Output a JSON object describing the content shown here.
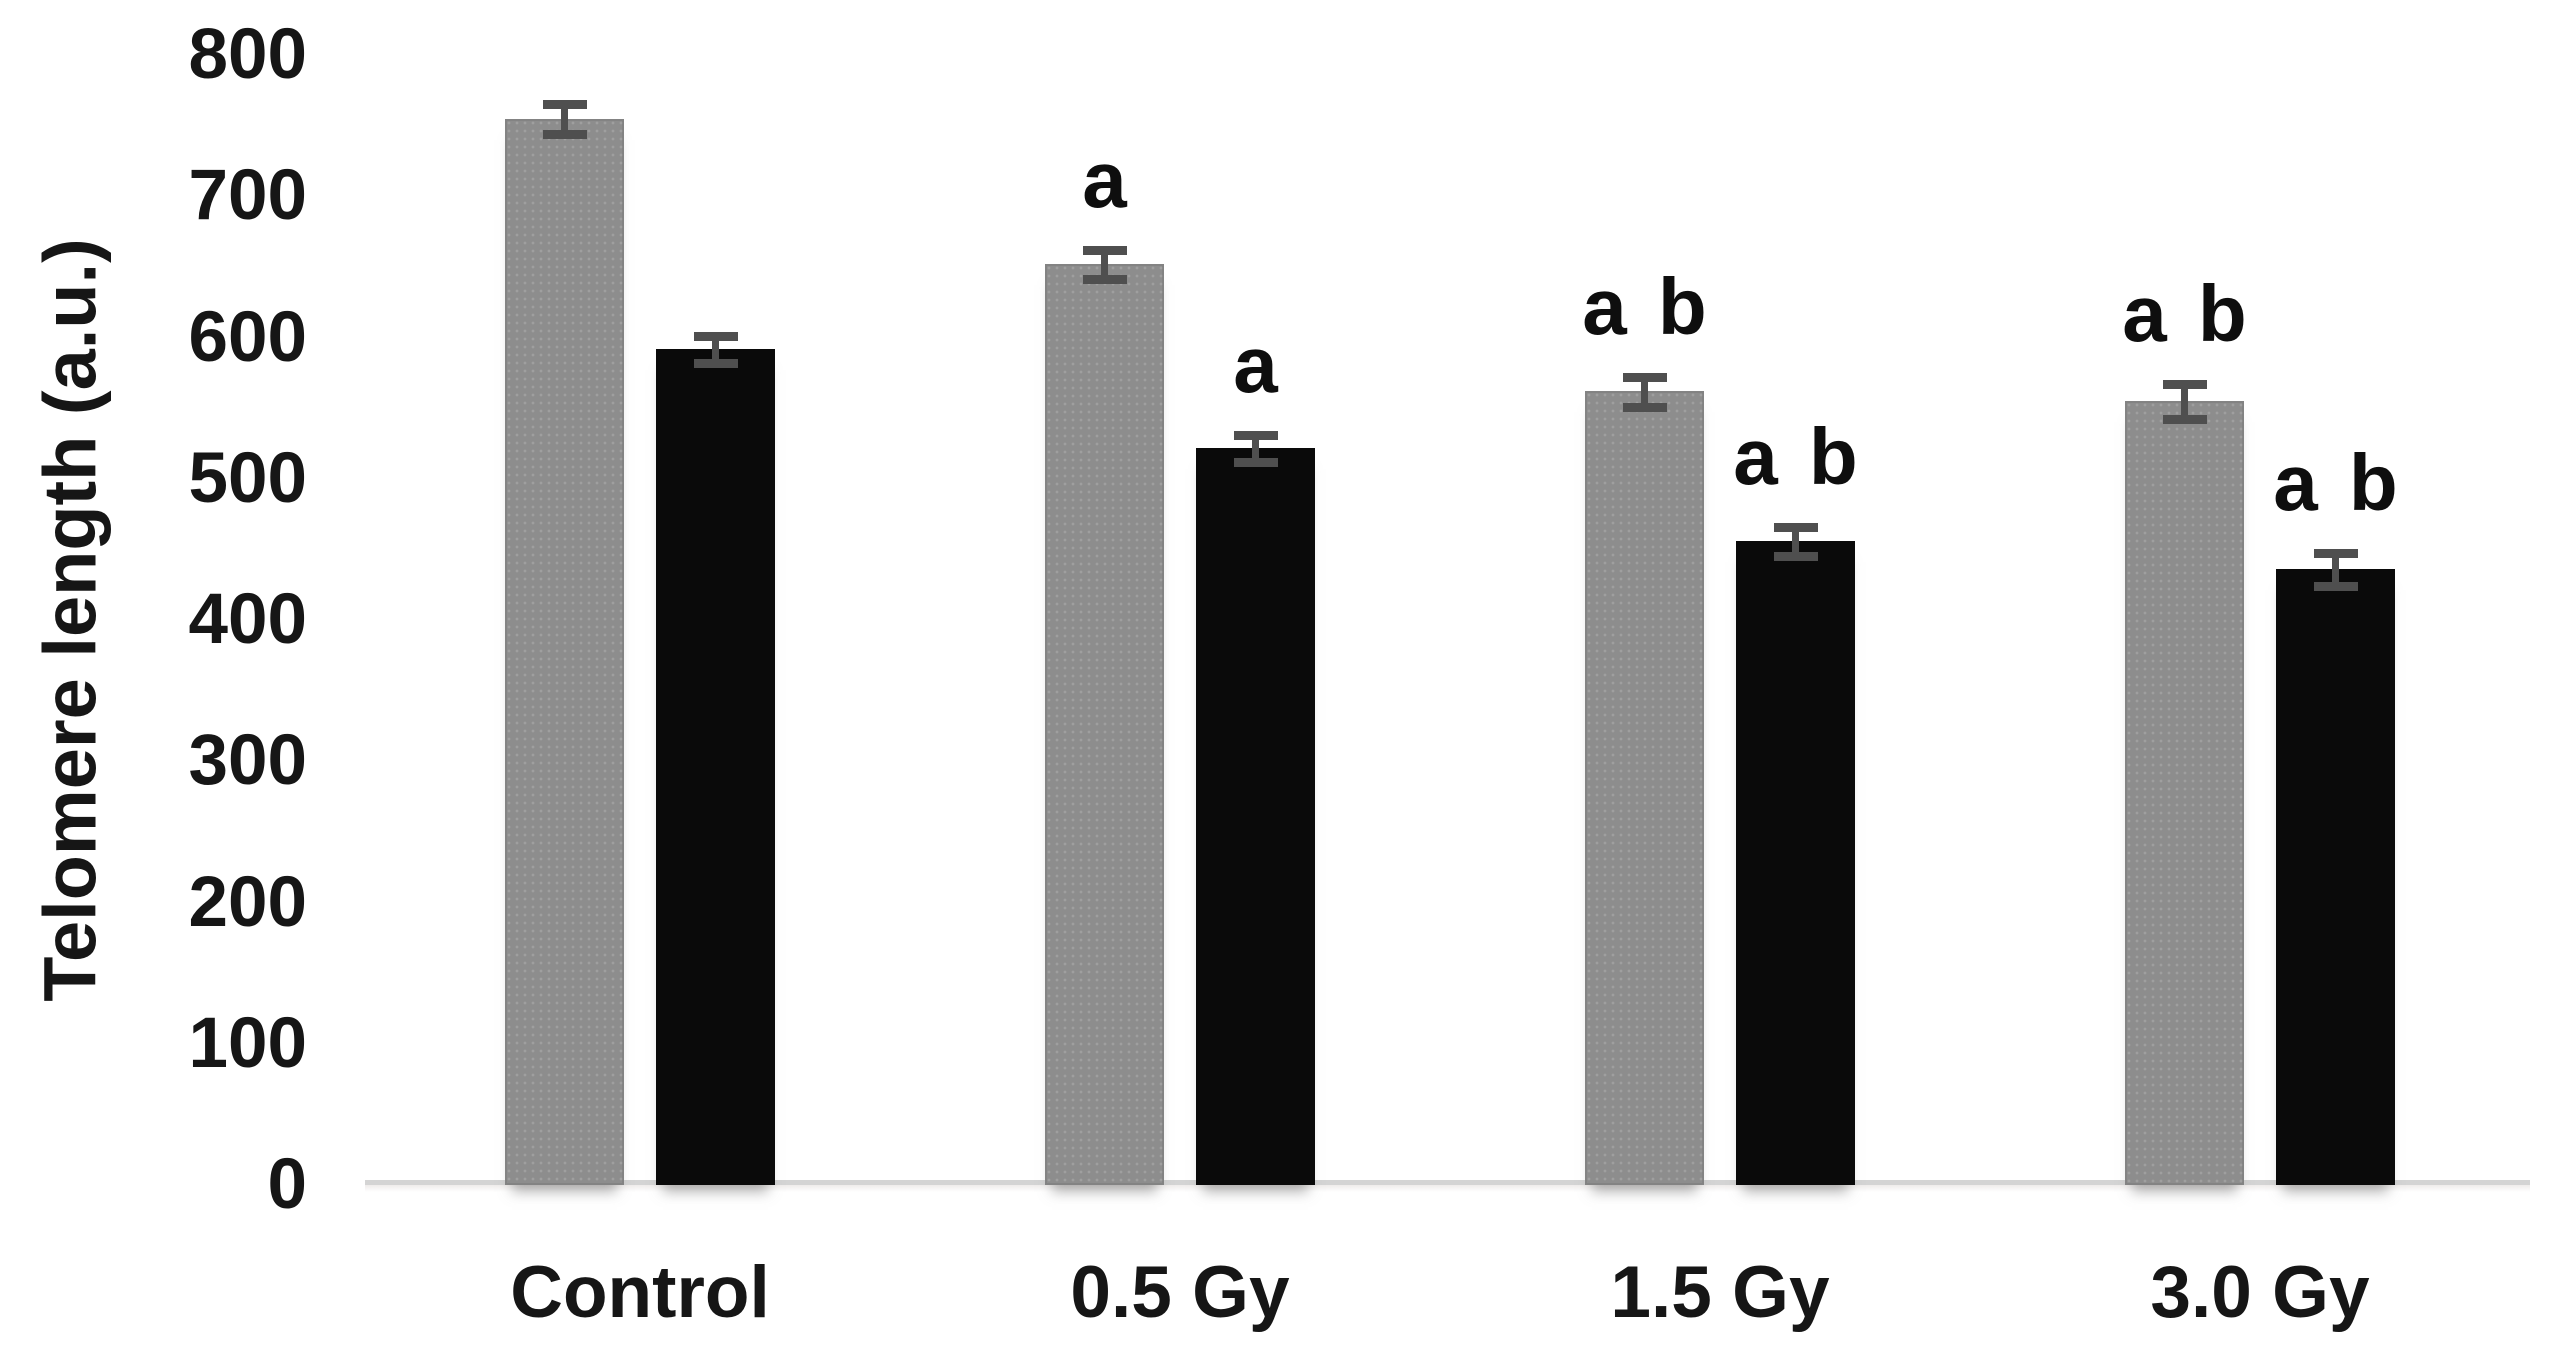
{
  "chart": {
    "background": "#ffffff"
  },
  "chart_data": {
    "type": "bar",
    "title": "",
    "xlabel": "",
    "ylabel": "Telomere length (a.u.)",
    "ylim": [
      0,
      800
    ],
    "ytick_interval": 100,
    "ytick_labels": [
      "0",
      "100",
      "200",
      "300",
      "400",
      "500",
      "600",
      "700",
      "800"
    ],
    "grid": false,
    "legend_position": "none",
    "categories": [
      "Control",
      "0.5 Gy",
      "1.5 Gy",
      "3.0 Gy"
    ],
    "series": [
      {
        "name": "gray-bars",
        "color": "#8d8d8d",
        "values": [
          755,
          652,
          562,
          555
        ],
        "errors": [
          13,
          13,
          13,
          15
        ],
        "sig_labels": [
          "",
          "a",
          "a b",
          "a b"
        ]
      },
      {
        "name": "black-bars",
        "color": "#0a0a0a",
        "values": [
          592,
          522,
          456,
          436
        ],
        "errors": [
          12,
          12,
          13,
          14
        ],
        "sig_labels": [
          "",
          "a",
          "a b",
          "a b"
        ]
      }
    ],
    "error_bar_color": "#4f4f4f",
    "axis_line_color": "#d4d4d4"
  }
}
